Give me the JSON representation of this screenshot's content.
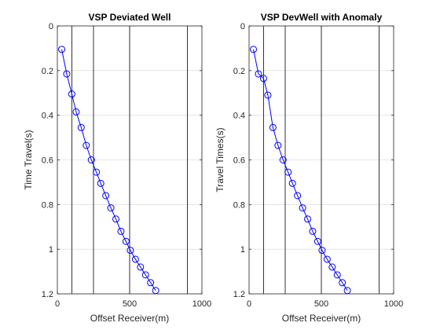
{
  "chart_data": [
    {
      "type": "line",
      "title": "VSP Deviated Well",
      "xlabel": "Offset Receiver(m)",
      "ylabel": "Time Travel(s)",
      "xlim": [
        0,
        1000
      ],
      "ylim": [
        0,
        1.2
      ],
      "y_reversed": true,
      "xticks": [
        "0",
        "500",
        "1000"
      ],
      "yticks": [
        "0",
        "0.2",
        "0.4",
        "0.6",
        "0.8",
        "1",
        "1.2"
      ],
      "grid": true,
      "vertical_lines_x": [
        100,
        250,
        500,
        900
      ],
      "line_color": "#0000ff",
      "marker": "circle",
      "series": [
        {
          "x": [
            30,
            65,
            100,
            130,
            165,
            200,
            235,
            270,
            300,
            335,
            370,
            405,
            440,
            475,
            505,
            540,
            575,
            610,
            645,
            680
          ],
          "y": [
            0.105,
            0.215,
            0.305,
            0.385,
            0.455,
            0.535,
            0.6,
            0.655,
            0.705,
            0.76,
            0.815,
            0.865,
            0.92,
            0.965,
            1.005,
            1.045,
            1.08,
            1.115,
            1.15,
            1.185
          ]
        }
      ]
    },
    {
      "type": "line",
      "title": "VSP DevWell with Anomaly",
      "xlabel": "Offset Receiver(m)",
      "ylabel": "Travel Times(s)",
      "xlim": [
        0,
        1000
      ],
      "ylim": [
        0,
        1.2
      ],
      "y_reversed": true,
      "xticks": [
        "0",
        "500",
        "1000"
      ],
      "yticks": [
        "0",
        "0.2",
        "0.4",
        "0.6",
        "0.8",
        "1",
        "1.2"
      ],
      "grid": true,
      "vertical_lines_x": [
        100,
        250,
        500,
        900
      ],
      "line_color": "#0000ff",
      "marker": "circle",
      "series": [
        {
          "x": [
            30,
            65,
            100,
            130,
            165,
            200,
            235,
            270,
            300,
            335,
            370,
            405,
            440,
            475,
            505,
            540,
            575,
            610,
            645,
            680
          ],
          "y": [
            0.105,
            0.215,
            0.235,
            0.31,
            0.455,
            0.535,
            0.6,
            0.655,
            0.705,
            0.76,
            0.815,
            0.865,
            0.92,
            0.965,
            1.005,
            1.045,
            1.08,
            1.115,
            1.15,
            1.185
          ]
        }
      ]
    }
  ]
}
